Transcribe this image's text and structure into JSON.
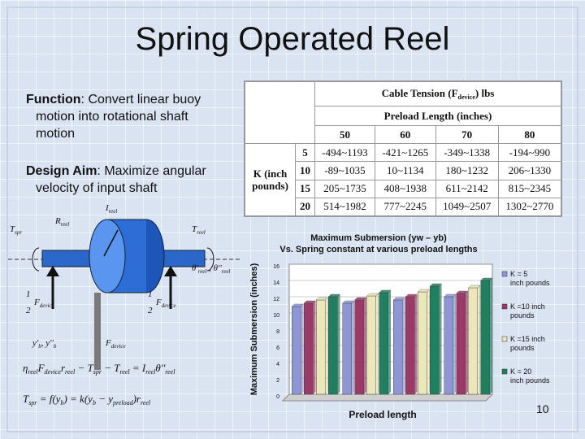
{
  "slide": {
    "title": "Spring Operated Reel",
    "page_number": "10"
  },
  "bullets": [
    {
      "label": "Function",
      "text": ": Convert linear buoy",
      "cont": [
        "motion into rotational shaft",
        "motion"
      ]
    },
    {
      "label": "Design Aim",
      "text": ": Maximize angular",
      "cont": [
        "velocity of input shaft"
      ]
    }
  ],
  "table": {
    "title_main": "Cable Tension (F",
    "title_sub": "device",
    "title_tail": ") lbs",
    "preload_header": "Preload Length (inches)",
    "k_header_line1": "K (inch",
    "k_header_line2": "pounds)",
    "columns": [
      "50",
      "60",
      "70",
      "80"
    ],
    "rows": [
      {
        "k": "5",
        "cells": [
          "-494~1193",
          "-421~1265",
          "-349~1338",
          "-194~990"
        ]
      },
      {
        "k": "10",
        "cells": [
          "-89~1035",
          "10~1134",
          "180~1232",
          "206~1330"
        ]
      },
      {
        "k": "15",
        "cells": [
          "205~1735",
          "408~1938",
          "611~2142",
          "815~2345"
        ]
      },
      {
        "k": "20",
        "cells": [
          "514~1982",
          "777~2245",
          "1049~2507",
          "1302~2770"
        ]
      }
    ]
  },
  "diagram": {
    "labels": {
      "i_reel_top": "I",
      "i_reel_sub": "reel",
      "r_reel": "R",
      "r_reel_sub": "reel",
      "t_spr": "T",
      "t_spr_sub": "spr",
      "t_reel": "T",
      "t_reel_sub": "reel",
      "theta": "θ'",
      "theta_sub": "reel",
      "theta2": " , θ''",
      "theta2_sub": "reel",
      "half_f_left": "1",
      "half_f_left_den": "2",
      "f_device": "F",
      "f_device_sub": "device",
      "y_b": "y'",
      "y_b_sub": "b",
      "y_b2": ", y''",
      "y_b2_sub": "b"
    },
    "eq1": "η",
    "eq1_rest": "F",
    "eq2": "T",
    "eq2_rest": "= f(y",
    "eq2_tail": ") = k(y",
    "eq2_tail2": " − y",
    "eq2_tail3": ")r"
  },
  "chart_data": {
    "type": "bar",
    "title": "Maximum Submersion (yw – yb)  Vs. Spring constant at various preload lengths",
    "xlabel": "Preload length",
    "ylabel": "Maximum Submersion (inches)",
    "categories": [
      "",
      "",
      "",
      ""
    ],
    "ylim": [
      0,
      16
    ],
    "yticks": [
      "0",
      "2",
      "4",
      "6",
      "8",
      "10",
      "12",
      "14",
      "16"
    ],
    "series": [
      {
        "name": "K = 5 inch pounds",
        "values": [
          10.8,
          11.2,
          11.6,
          12.0
        ],
        "color": "#8f96d6"
      },
      {
        "name": "K =10 inch pounds",
        "values": [
          11.2,
          11.6,
          12.0,
          12.4
        ],
        "color": "#9b3a66"
      },
      {
        "name": "K =15 inch pounds",
        "values": [
          11.6,
          12.1,
          12.6,
          13.1
        ],
        "color": "#ece7b8"
      },
      {
        "name": "K = 20 inch pounds",
        "values": [
          12.0,
          12.5,
          13.3,
          14.0
        ],
        "color": "#1f7f5f"
      }
    ],
    "legend": "right",
    "grid": true
  }
}
